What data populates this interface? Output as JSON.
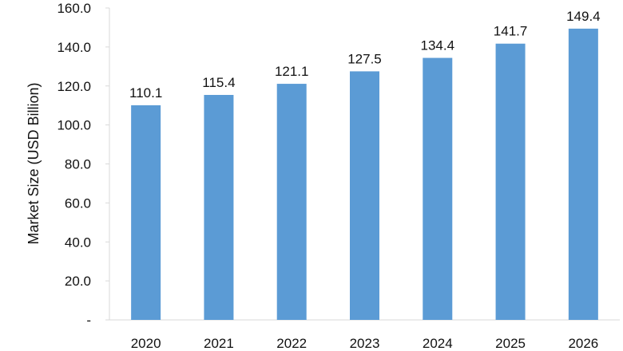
{
  "chart_data": {
    "type": "bar",
    "title": "",
    "xlabel": "",
    "ylabel": "Market Size (USD Billion)",
    "categories": [
      "2020",
      "2021",
      "2022",
      "2023",
      "2024",
      "2025",
      "2026"
    ],
    "values": [
      110.1,
      115.4,
      121.1,
      127.5,
      134.4,
      141.7,
      149.4
    ],
    "value_labels": [
      "110.1",
      "115.4",
      "121.1",
      "127.5",
      "134.4",
      "141.7",
      "149.4"
    ],
    "ylim": [
      0,
      160
    ],
    "y_ticks": [
      0,
      20,
      40,
      60,
      80,
      100,
      120,
      140,
      160
    ],
    "y_tick_labels": [
      "-",
      "20.0",
      "40.0",
      "60.0",
      "80.0",
      "100.0",
      "120.0",
      "140.0",
      "160.0"
    ],
    "grid": false,
    "legend": "none",
    "bar_color": "#5b9bd5",
    "axis_color": "#d9d9d9"
  }
}
